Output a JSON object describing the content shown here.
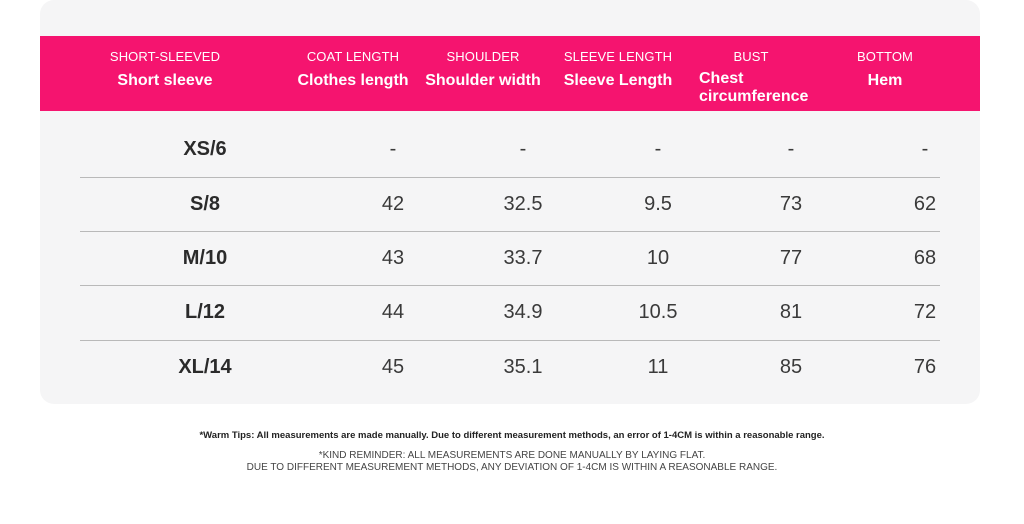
{
  "header": [
    {
      "en": "SHORT-SLEEVED",
      "cn": "Short sleeve"
    },
    {
      "en": "COAT LENGTH",
      "cn": "Clothes length"
    },
    {
      "en": "SHOULDER",
      "cn": "Shoulder width"
    },
    {
      "en": "SLEEVE LENGTH",
      "cn": "Sleeve Length"
    },
    {
      "en": "BUST",
      "cn": "Chest circumference"
    },
    {
      "en": "BOTTOM",
      "cn": "Hem"
    }
  ],
  "rows": [
    {
      "size": "XS/6",
      "values": [
        "-",
        "-",
        "-",
        "-",
        "-"
      ]
    },
    {
      "size": "S/8",
      "values": [
        "42",
        "32.5",
        "9.5",
        "73",
        "62"
      ]
    },
    {
      "size": "M/10",
      "values": [
        "43",
        "33.7",
        "10",
        "77",
        "68"
      ]
    },
    {
      "size": "L/12",
      "values": [
        "44",
        "34.9",
        "10.5",
        "81",
        "72"
      ]
    },
    {
      "size": "XL/14",
      "values": [
        "45",
        "35.1",
        "11",
        "85",
        "76"
      ]
    }
  ],
  "notes": {
    "warm_tips": "*Warm Tips: All measurements are made manually. Due to different measurement methods, an error of 1-4CM is within a reasonable range.",
    "reminder_line1": "*KIND REMINDER: ALL MEASUREMENTS ARE DONE MANUALLY BY LAYING FLAT.",
    "reminder_line2": "DUE TO DIFFERENT MEASUREMENT METHODS, ANY DEVIATION OF 1-4CM IS WITHIN A REASONABLE RANGE."
  },
  "colors": {
    "header_bg": "#f5146f",
    "card_bg": "#f5f5f6",
    "divider": "#b9b9b9"
  }
}
